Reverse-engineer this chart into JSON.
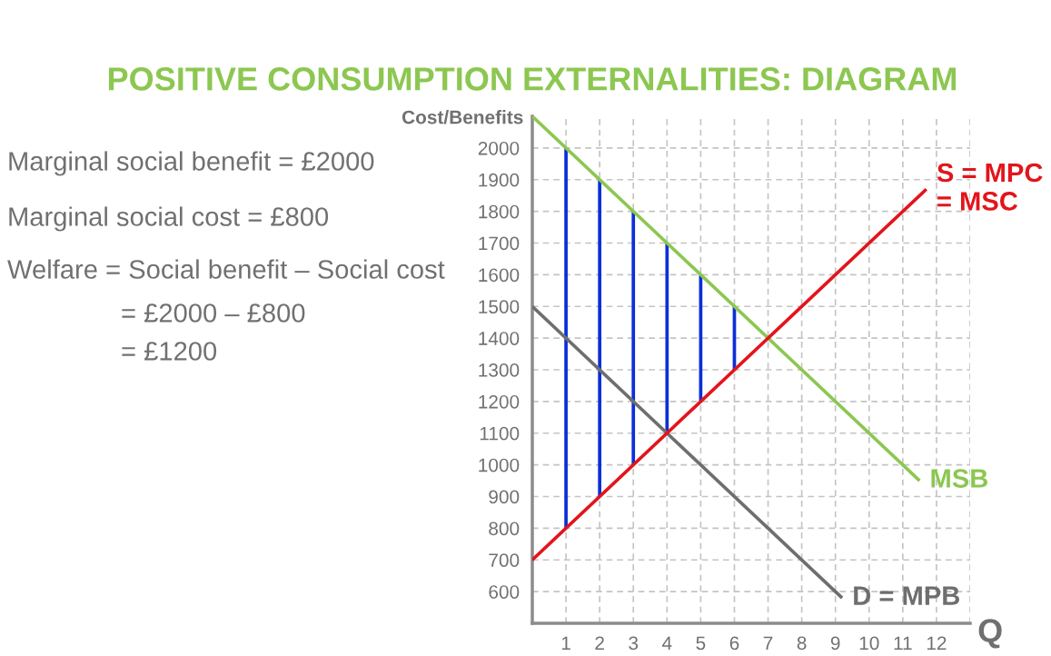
{
  "chart_data": {
    "type": "line",
    "title": "POSITIVE CONSUMPTION EXTERNALITIES: DIAGRAM",
    "xlabel": "Q",
    "ylabel": "Cost/Benefits",
    "annotations": [
      "Marginal social benefit = £2000",
      "Marginal social cost = £800",
      "Welfare = Social benefit – Social cost",
      "= £2000 – £800",
      "= £1200"
    ],
    "series": [
      {
        "type": "bar",
        "x": [
          1,
          2,
          3,
          4,
          5,
          6
        ],
        "base": [
          800,
          900,
          1000,
          1100,
          1200,
          1300
        ],
        "values": [
          1200,
          1000,
          800,
          600,
          400,
          200
        ],
        "color": "#0b2fd8"
      },
      {
        "name": "MSB",
        "x": [
          0,
          11.5
        ],
        "values": [
          2100,
          950
        ],
        "color": "#8cc751"
      },
      {
        "name": "D = MPB",
        "x": [
          0,
          9.2
        ],
        "values": [
          1500,
          580
        ],
        "color": "#6e6e6e"
      },
      {
        "name": "S = MPC = MSC",
        "x": [
          0,
          11.7
        ],
        "values": [
          700,
          1870
        ],
        "color": "#e3141b"
      }
    ],
    "xlim": [
      0,
      13
    ],
    "ylim": [
      500,
      2100
    ],
    "xticks": [
      1,
      2,
      3,
      4,
      5,
      6,
      7,
      8,
      9,
      10,
      11,
      12,
      {
        "value": 13,
        "label": null
      }
    ],
    "yticks": [
      600,
      700,
      800,
      900,
      1000,
      1100,
      1200,
      1300,
      1400,
      1500,
      1600,
      1700,
      1800,
      1900,
      2000
    ],
    "grid": true
  }
}
